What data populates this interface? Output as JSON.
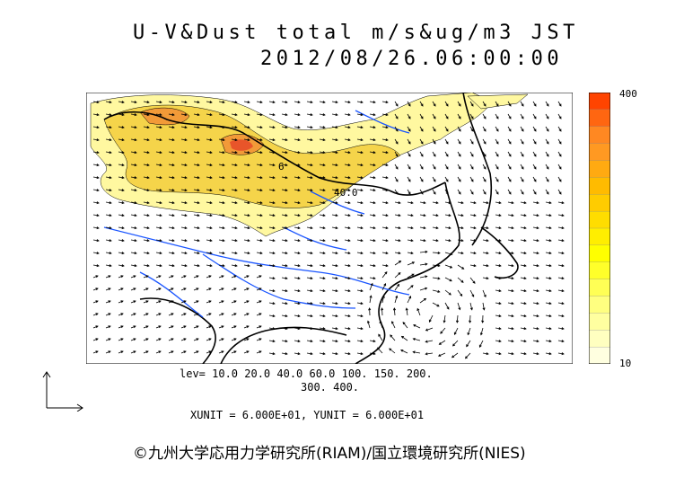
{
  "title": "U-V&Dust total m/s&ug/m3 JST",
  "datetime": "2012/08/26.06:00:00",
  "colorbar": {
    "max_label": "400",
    "min_label": "10",
    "colors": [
      "#ffffe0",
      "#ffffc0",
      "#ffffa0",
      "#ffff80",
      "#ffff55",
      "#ffff2a",
      "#ffff00",
      "#ffee00",
      "#ffdd00",
      "#ffcc00",
      "#ffbb00",
      "#ffaa11",
      "#ff9922",
      "#ff8822",
      "#ff6611",
      "#ff4400"
    ]
  },
  "contour_labels": [
    "6",
    "40.0"
  ],
  "levels_line1": "lev= 10.0 20.0 40.0 60.0 100. 150. 200.",
  "levels_line2": "300. 400.",
  "units_line": "XUNIT = 6.000E+01, YUNIT = 6.000E+01",
  "copyright": "©九州大学応用力学研究所(RIAM)/国立環境研究所(NIES)",
  "colors": {
    "coast": "#000000",
    "rivers": "#1a55ff",
    "dust_low": "#fff8a0",
    "dust_mid": "#f5d44a",
    "dust_high": "#f29a38",
    "dust_peak": "#e8552a"
  }
}
